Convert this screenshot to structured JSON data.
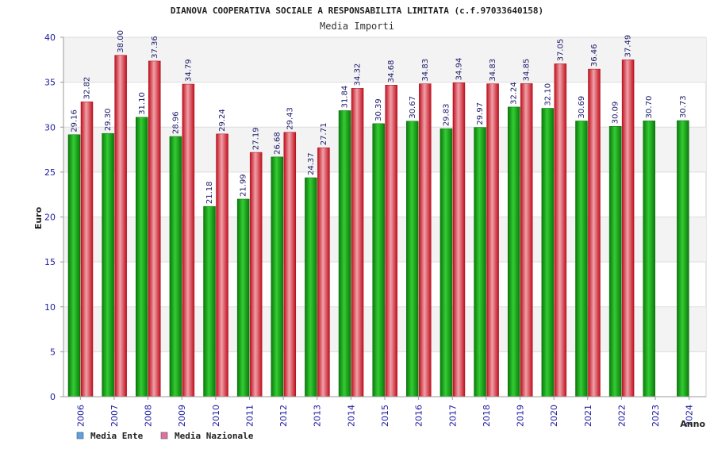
{
  "chart_data": {
    "type": "bar",
    "title": "DIANOVA COOPERATIVA SOCIALE A RESPONSABILITA LIMITATA (c.f.97033640158)",
    "subtitle": "Media Importi",
    "xlabel": "Anno",
    "ylabel": "Euro",
    "ylim": [
      0,
      40
    ],
    "yticks": [
      "0",
      "5",
      "10",
      "15",
      "20",
      "25",
      "30",
      "35",
      "40"
    ],
    "grid": true,
    "legend_placement": "bottom-left",
    "categories": [
      "2006",
      "2007",
      "2008",
      "2009",
      "2010",
      "2011",
      "2012",
      "2013",
      "2014",
      "2015",
      "2016",
      "2017",
      "2018",
      "2019",
      "2020",
      "2021",
      "2022",
      "2023",
      "2024"
    ],
    "series": [
      {
        "name": "Media Ente",
        "color": "#1aa51a",
        "legend_color": "#5aa0e6",
        "values": [
          29.16,
          29.3,
          31.1,
          28.96,
          21.18,
          21.99,
          26.68,
          24.37,
          31.84,
          30.39,
          30.67,
          29.83,
          29.97,
          32.24,
          32.1,
          30.69,
          30.09,
          30.7,
          30.73
        ],
        "labels": [
          "29.16",
          "29.30",
          "31.10",
          "28.96",
          "21.18",
          "21.99",
          "26.68",
          "24.37",
          "31.84",
          "30.39",
          "30.67",
          "29.83",
          "29.97",
          "32.24",
          "32.10",
          "30.69",
          "30.09",
          "30.70",
          "30.73"
        ]
      },
      {
        "name": "Media Nazionale",
        "color": "#e8283a",
        "legend_color": "#e070a0",
        "values": [
          32.82,
          38.0,
          37.36,
          34.79,
          29.24,
          27.19,
          29.43,
          27.71,
          34.32,
          34.68,
          34.83,
          34.94,
          34.83,
          34.85,
          37.05,
          36.46,
          37.49,
          null,
          null
        ],
        "labels": [
          "32.82",
          "38.00",
          "37.36",
          "34.79",
          "29.24",
          "27.19",
          "29.43",
          "27.71",
          "34.32",
          "34.68",
          "34.83",
          "34.94",
          "34.83",
          "34.85",
          "37.05",
          "36.46",
          "37.49",
          null,
          null
        ]
      }
    ]
  }
}
